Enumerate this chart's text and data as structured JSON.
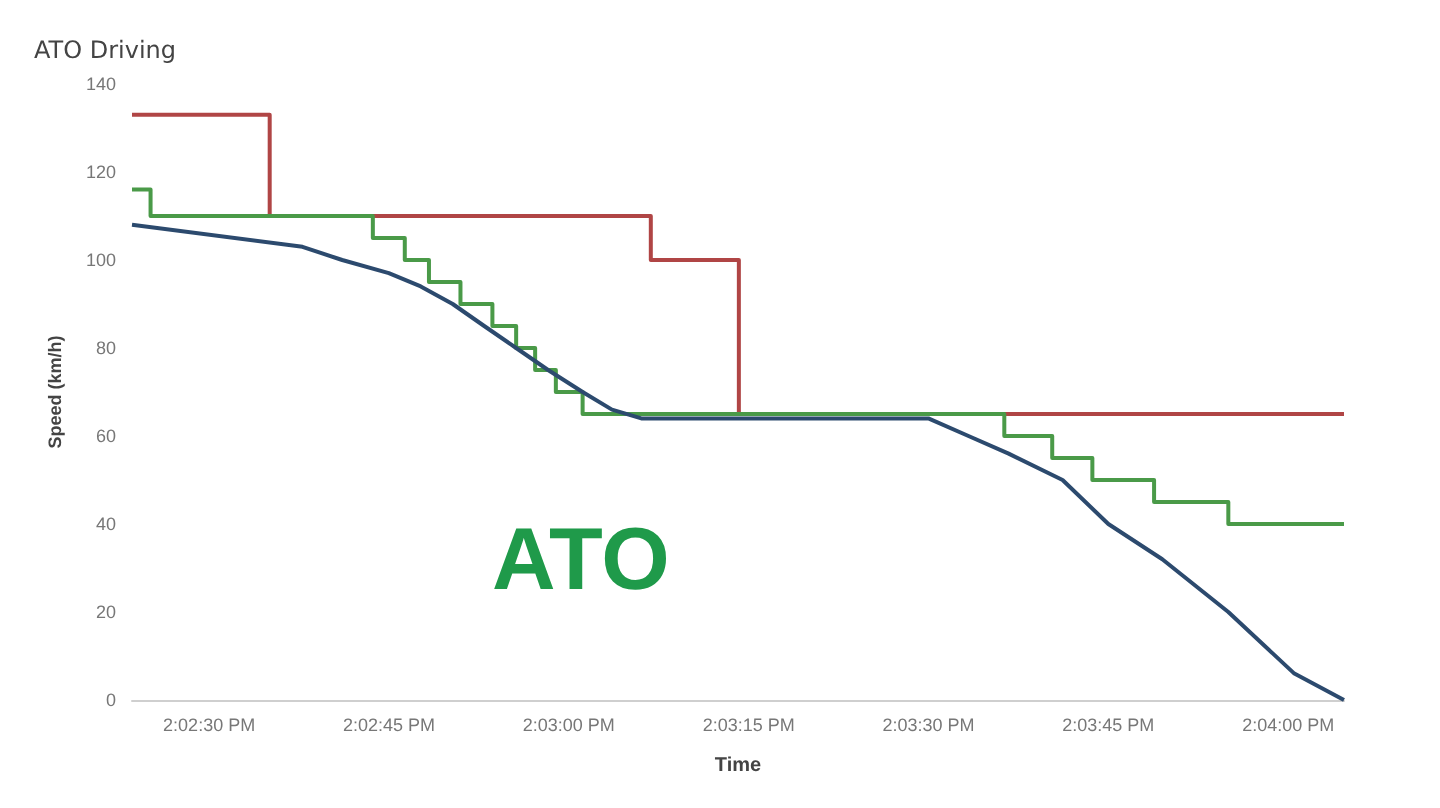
{
  "chart_data": {
    "type": "step",
    "title": "ATO Driving",
    "xlabel": "Time",
    "ylabel": "Speed (km/h)",
    "annotations": [
      "ATO"
    ],
    "xlim": [
      14.03988,
      14.06796
    ],
    "ylim": [
      0,
      140
    ],
    "xticks": [
      {
        "value": 14.041667,
        "label": "2:02:30 PM"
      },
      {
        "value": 14.045833,
        "label": "2:02:45 PM"
      },
      {
        "value": 14.05,
        "label": "2:03:00 PM"
      },
      {
        "value": 14.054167,
        "label": "2:03:15 PM"
      },
      {
        "value": 14.058333,
        "label": "2:03:30 PM"
      },
      {
        "value": 14.0625,
        "label": "2:03:45 PM"
      },
      {
        "value": 14.066667,
        "label": "2:04:00 PM"
      }
    ],
    "yticks": [
      0,
      20,
      40,
      60,
      80,
      100,
      120,
      140
    ],
    "grid": false,
    "marker": "none",
    "line_style": "solid",
    "series": [
      {
        "color": "#b04545",
        "x": [
          14.03988,
          14.04307,
          14.0519,
          14.05394,
          14.06796
        ],
        "values": [
          133,
          110,
          100,
          65,
          65
        ]
      },
      {
        "color": "#4a9a48",
        "x": [
          14.03988,
          14.04031,
          14.04546,
          14.0462,
          14.04676,
          14.04749,
          14.04823,
          14.04878,
          14.04922,
          14.0497,
          14.05032,
          14.06009,
          14.0612,
          14.06213,
          14.06356,
          14.06528,
          14.06796
        ],
        "values": [
          116,
          110,
          105,
          100,
          95,
          90,
          85,
          80,
          75,
          70,
          65,
          60,
          55,
          50,
          45,
          40,
          40
        ]
      },
      {
        "type": "line",
        "color": "#2c4a6e",
        "x": [
          14.03988,
          14.04383,
          14.04475,
          14.04583,
          14.04657,
          14.04731,
          14.04804,
          14.04878,
          14.04952,
          14.05032,
          14.051,
          14.05168,
          14.05833,
          14.05926,
          14.06019,
          14.06144,
          14.0625,
          14.06375,
          14.06528,
          14.06681,
          14.06796
        ],
        "values": [
          108,
          103,
          100,
          97,
          94,
          90,
          85,
          80,
          75,
          70,
          66,
          64,
          64,
          60,
          56,
          50,
          40,
          32,
          20,
          6,
          0
        ]
      }
    ]
  }
}
